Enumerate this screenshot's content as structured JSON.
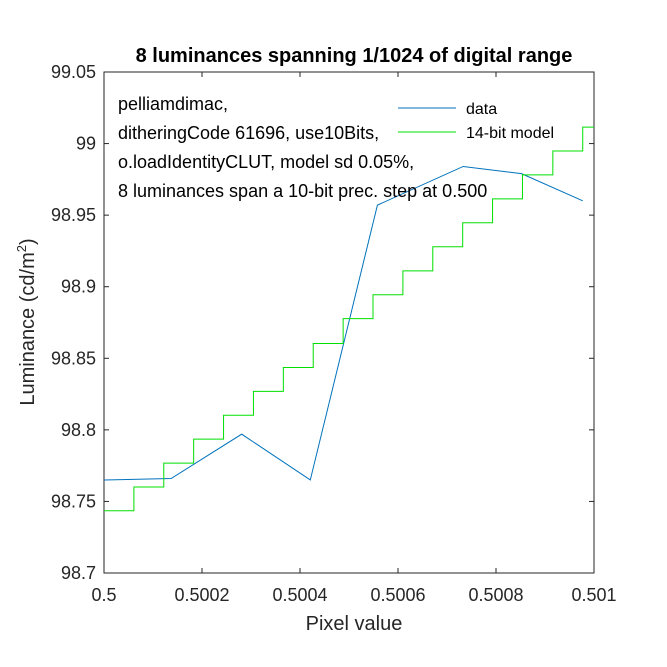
{
  "chart_data": {
    "type": "line",
    "title": "8 luminances spanning 1/1024 of digital range",
    "xlabel": "Pixel value",
    "ylabel_main": "Luminance (cd/m",
    "ylabel_sup": "2",
    "ylabel_end": ")",
    "xlim": [
      0.5,
      0.501
    ],
    "ylim": [
      98.7,
      99.05
    ],
    "xticks": [
      0.5,
      0.5002,
      0.5004,
      0.5006,
      0.5008,
      0.501
    ],
    "xtick_labels": [
      "0.5",
      "0.5002",
      "0.5004",
      "0.5006",
      "0.5008",
      "0.501"
    ],
    "yticks": [
      98.7,
      98.75,
      98.8,
      98.85,
      98.9,
      98.95,
      99,
      99.05
    ],
    "ytick_labels": [
      "98.7",
      "98.75",
      "98.8",
      "98.85",
      "98.9",
      "98.95",
      "99",
      "99.05"
    ],
    "grid": false,
    "legend_position": "top-right",
    "annotation_lines": [
      "pelliamdimac,",
      "ditheringCode 61696, use10Bits,",
      "o.loadIdentityCLUT, model sd 0.05%,",
      "8 luminances span a 10-bit prec. step at 0.500"
    ],
    "series": [
      {
        "name": "data",
        "color": "#0072BD",
        "style": "line",
        "x": [
          0.5,
          0.500137,
          0.500281,
          0.500421,
          0.500558,
          0.500733,
          0.500852,
          0.500977
        ],
        "y": [
          98.765,
          98.766,
          98.797,
          98.765,
          98.957,
          98.984,
          98.979,
          98.96
        ]
      },
      {
        "name": "14-bit model",
        "color": "#00E000",
        "style": "step",
        "x": [
          0.5,
          0.500061,
          0.500122,
          0.500183,
          0.500244,
          0.500305,
          0.500366,
          0.500427,
          0.500488,
          0.500549,
          0.50061,
          0.500671,
          0.500732,
          0.500793,
          0.500854,
          0.500916,
          0.500977
        ],
        "y": [
          98.7435,
          98.7601,
          98.7768,
          98.7935,
          98.8102,
          98.8269,
          98.8436,
          98.8603,
          98.8777,
          98.8944,
          98.9111,
          98.9279,
          98.9447,
          98.9614,
          98.9781,
          98.9948,
          99.0115
        ]
      }
    ]
  }
}
